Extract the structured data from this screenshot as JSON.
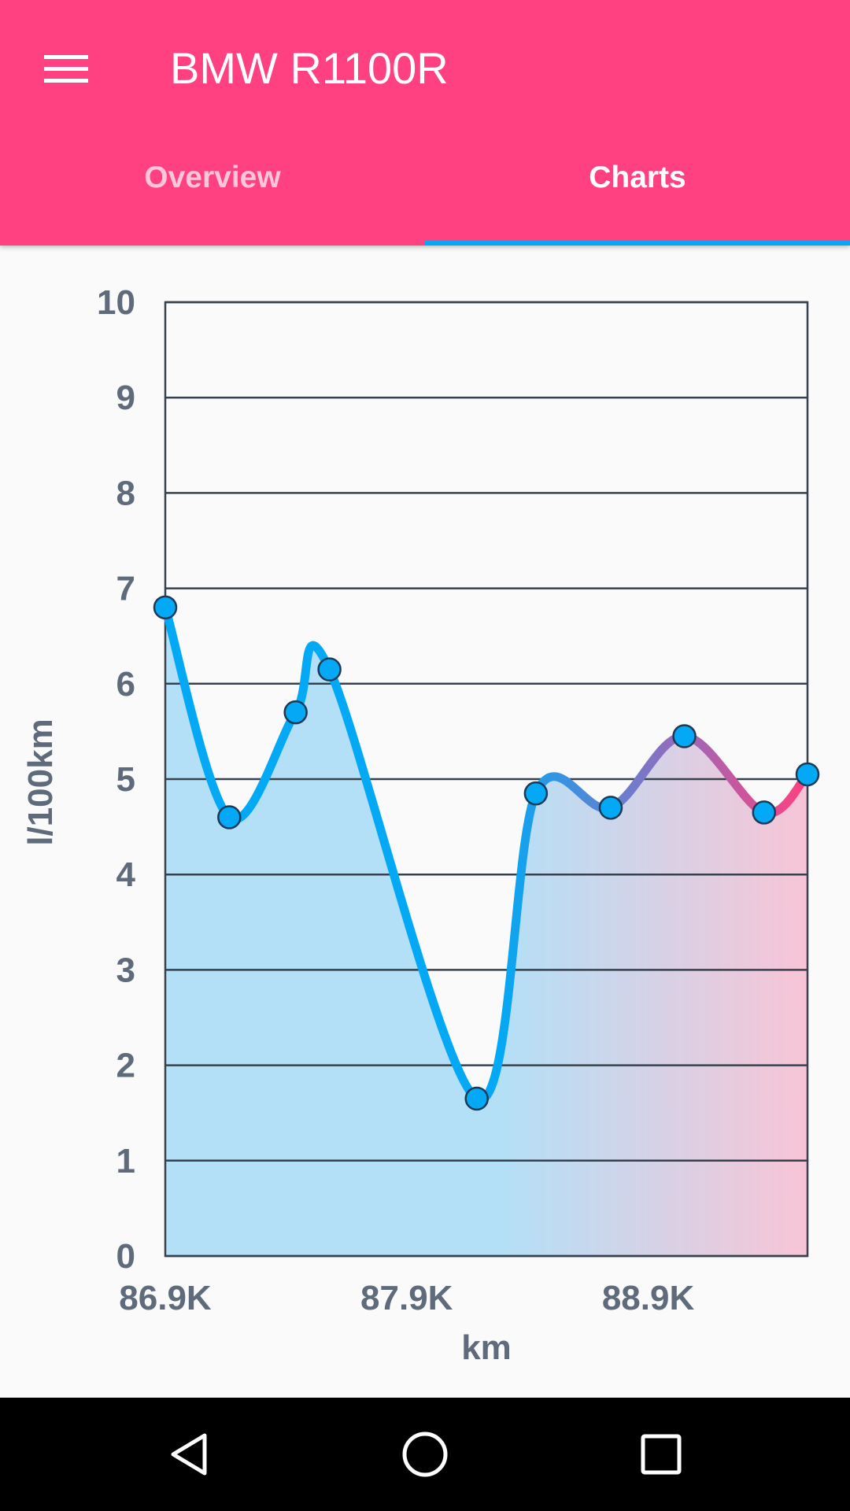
{
  "app": {
    "title": "BMW R1100R",
    "menu_icon": "menu-icon"
  },
  "tabs": [
    {
      "label": "Overview",
      "selected": false
    },
    {
      "label": "Charts",
      "selected": true
    }
  ],
  "colors": {
    "appbar": "#ff4081",
    "indicator": "#03a9f4",
    "line_start": "#03a9f4",
    "line_end": "#ff4081",
    "axis_text": "#5f6b7a",
    "grid": "#37414d"
  },
  "chart_data": {
    "type": "line",
    "xlabel": "km",
    "ylabel": "l/100km",
    "ylim": [
      0,
      10
    ],
    "xlim": [
      86900,
      89560
    ],
    "yticks": [
      "0",
      "1",
      "2",
      "3",
      "4",
      "5",
      "6",
      "7",
      "8",
      "9",
      "10"
    ],
    "xticks": [
      {
        "value": 86900,
        "label": "86.9K"
      },
      {
        "value": 87900,
        "label": "87.9K"
      },
      {
        "value": 88900,
        "label": "88.9K"
      }
    ],
    "grid": "horizontal",
    "series": [
      {
        "x": [
          86900,
          87165,
          87440,
          87580,
          88190,
          88435,
          88745,
          89050,
          89380,
          89560
        ],
        "values": [
          6.8,
          4.6,
          5.7,
          6.15,
          1.65,
          4.85,
          4.7,
          5.45,
          4.65,
          5.05
        ]
      }
    ]
  },
  "navbar": {
    "back_icon": "back-icon",
    "home_icon": "home-icon",
    "recents_icon": "recents-icon"
  }
}
